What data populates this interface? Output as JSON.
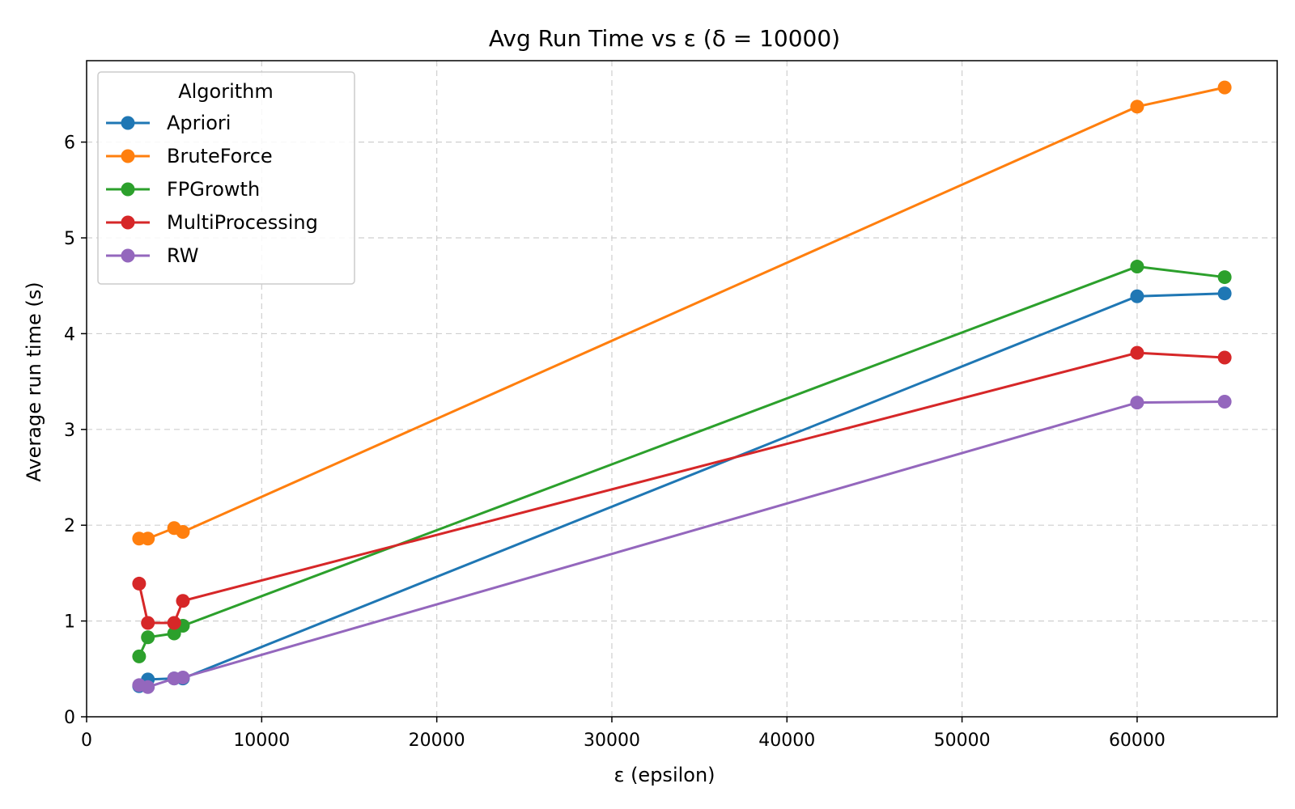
{
  "chart_data": {
    "type": "line",
    "title": "Avg Run Time vs ε (δ = 10000)",
    "xlabel": "ε (epsilon)",
    "ylabel": "Average run time (s)",
    "xlim": [
      0,
      68000
    ],
    "ylim": [
      0,
      6.85
    ],
    "xticks": [
      0,
      10000,
      20000,
      30000,
      40000,
      50000,
      60000
    ],
    "xtick_labels": [
      "0",
      "10000",
      "20000",
      "30000",
      "40000",
      "50000",
      "60000"
    ],
    "yticks": [
      0,
      1,
      2,
      3,
      4,
      5,
      6
    ],
    "ytick_labels": [
      "0",
      "1",
      "2",
      "3",
      "4",
      "5",
      "6"
    ],
    "grid": true,
    "legend": {
      "title": "Algorithm",
      "placement": "top-left"
    },
    "x": [
      3000,
      3500,
      5000,
      5500,
      60000,
      65000
    ],
    "series": [
      {
        "name": "Apriori",
        "color": "#1f77b4",
        "values": [
          0.32,
          0.39,
          0.4,
          0.4,
          4.39,
          4.42
        ]
      },
      {
        "name": "BruteForce",
        "color": "#ff7f0e",
        "values": [
          1.86,
          1.86,
          1.97,
          1.93,
          6.37,
          6.57
        ]
      },
      {
        "name": "FPGrowth",
        "color": "#2ca02c",
        "values": [
          0.63,
          0.83,
          0.87,
          0.95,
          4.7,
          4.59
        ]
      },
      {
        "name": "MultiProcessing",
        "color": "#d62728",
        "values": [
          1.39,
          0.98,
          0.98,
          1.21,
          3.8,
          3.75
        ]
      },
      {
        "name": "RW",
        "color": "#9467bd",
        "values": [
          0.33,
          0.31,
          0.4,
          0.41,
          3.28,
          3.29
        ]
      }
    ]
  }
}
